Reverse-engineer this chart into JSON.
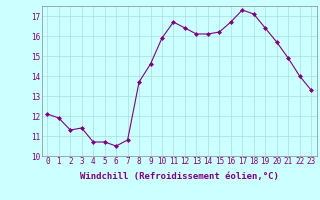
{
  "x": [
    0,
    1,
    2,
    3,
    4,
    5,
    6,
    7,
    8,
    9,
    10,
    11,
    12,
    13,
    14,
    15,
    16,
    17,
    18,
    19,
    20,
    21,
    22,
    23
  ],
  "y": [
    12.1,
    11.9,
    11.3,
    11.4,
    10.7,
    10.7,
    10.5,
    10.8,
    13.7,
    14.6,
    15.9,
    16.7,
    16.4,
    16.1,
    16.1,
    16.2,
    16.7,
    17.3,
    17.1,
    16.4,
    15.7,
    14.9,
    14.0,
    13.3
  ],
  "line_color": "#800080",
  "marker": "D",
  "marker_size": 2.0,
  "bg_color": "#ccffff",
  "grid_color": "#aadddd",
  "xlabel": "Windchill (Refroidissement éolien,°C)",
  "ylim": [
    10,
    17.5
  ],
  "xlim": [
    -0.5,
    23.5
  ],
  "xticks": [
    0,
    1,
    2,
    3,
    4,
    5,
    6,
    7,
    8,
    9,
    10,
    11,
    12,
    13,
    14,
    15,
    16,
    17,
    18,
    19,
    20,
    21,
    22,
    23
  ],
  "yticks": [
    10,
    11,
    12,
    13,
    14,
    15,
    16,
    17
  ],
  "tick_color": "#800080",
  "label_color": "#800080",
  "font_size": 5.5,
  "xlabel_font_size": 6.5
}
